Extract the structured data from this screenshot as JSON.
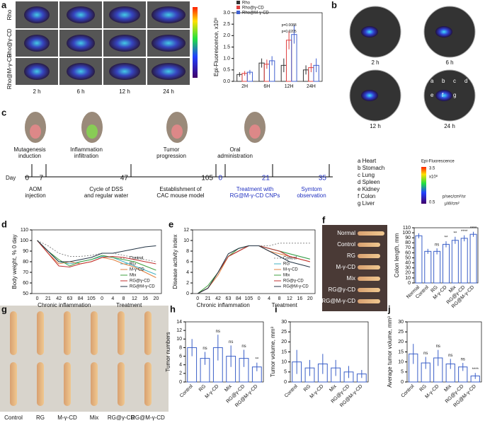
{
  "panels": [
    "a",
    "b",
    "c",
    "d",
    "e",
    "f",
    "g",
    "h",
    "i",
    "j"
  ],
  "a": {
    "rows": [
      "Rho",
      "Rho@γ-CD",
      "Rho@M-γ-CD"
    ],
    "cols": [
      "2 h",
      "6 h",
      "12 h",
      "24 h"
    ]
  },
  "b": {
    "times": [
      "2 h",
      "6 h",
      "12 h",
      "24 h"
    ],
    "organ_marks": [
      "a",
      "b",
      "c",
      "d",
      "e",
      "f",
      "g"
    ],
    "organs": [
      "a Heart",
      "b Stomach",
      "c Lung",
      "d Spleen",
      "e Kidney",
      "f Colon",
      "g Liver"
    ],
    "colorbar": {
      "title": "Epi-Fluorescence",
      "scale": "x10⁸",
      "max": "3.5",
      "min": "0.5",
      "unit_top": "p/sec/cm²/sr",
      "unit_bottom": "µW/cm²"
    }
  },
  "c": {
    "stages": [
      [
        "Mutagenesis",
        "induction"
      ],
      [
        "Inflammation",
        "infiltration"
      ],
      [
        "Tumor",
        "progression"
      ],
      [
        "Oral",
        "administration"
      ]
    ],
    "day_label": "Day",
    "days": [
      "0",
      "7",
      "47",
      "105",
      "0",
      "21",
      "35"
    ],
    "notes": [
      [
        "AOM",
        "injection"
      ],
      [
        "Cycle of DSS",
        "and regular water"
      ],
      [
        "Establishment of",
        "CAC mouse model"
      ],
      [
        "Treatment with",
        "RG@M-γ-CD CNPs"
      ],
      [
        "Symtom",
        "observation"
      ]
    ]
  },
  "f_photo": {
    "labels": [
      "Normal",
      "Control",
      "RG",
      "M-γ-CD",
      "Mix",
      "RG@γ-CD",
      "RG@M-γ-CD"
    ]
  },
  "g": {
    "labels": [
      "Control",
      "RG",
      "M-γ-CD",
      "Mix",
      "RG@γ-CD",
      "RG@M-γ-CD"
    ]
  },
  "chart_data": [
    {
      "type": "bar",
      "ylabel": "Epi-Fluorescence, x10⁸",
      "categories": [
        "2H",
        "6H",
        "12H",
        "24H"
      ],
      "series": [
        {
          "name": "Rho",
          "color": "#333333",
          "values": [
            0.3,
            0.8,
            0.7,
            0.5
          ],
          "errors": [
            0.1,
            0.2,
            0.3,
            0.2
          ]
        },
        {
          "name": "Rho@γ-CD",
          "color": "#e04040",
          "values": [
            0.35,
            0.75,
            1.8,
            0.6
          ],
          "errors": [
            0.1,
            0.2,
            0.4,
            0.2
          ]
        },
        {
          "name": "Rho@M-γ-CD",
          "color": "#4060d0",
          "values": [
            0.4,
            0.9,
            2.05,
            0.7
          ],
          "errors": [
            0.1,
            0.2,
            0.4,
            0.3
          ]
        }
      ],
      "annotations": [
        "p=0.0205",
        "p=0.0088"
      ],
      "legend": "top-left",
      "ylim": [
        0,
        3
      ],
      "yticks": [
        {
          "value": 0,
          "label": "0.0"
        },
        0.5,
        {
          "value": 1,
          "label": "1.0"
        },
        1.5,
        {
          "value": 2,
          "label": "2.0"
        },
        2.5,
        {
          "value": 3,
          "label": "3.0"
        }
      ]
    },
    {
      "type": "line",
      "ylabel": "Body weight, % 0 day",
      "xgroups": [
        "Chronic inflammation",
        "Treatment"
      ],
      "categories": [
        "0",
        "21",
        "42",
        "63",
        "84",
        "105",
        "0",
        "4",
        "8",
        "12",
        "16",
        "20"
      ],
      "series": [
        {
          "name": "Control",
          "color": "#888888",
          "style": "dotted",
          "values": [
            100,
            95,
            88,
            85,
            85,
            86,
            88,
            88,
            86,
            84,
            82,
            80
          ]
        },
        {
          "name": "RG",
          "color": "#40b0c0",
          "values": [
            100,
            90,
            80,
            78,
            80,
            82,
            85,
            84,
            80,
            76,
            72,
            68
          ]
        },
        {
          "name": "M-γ-CD",
          "color": "#e08040",
          "values": [
            100,
            88,
            78,
            80,
            78,
            80,
            84,
            82,
            78,
            75,
            70,
            65
          ]
        },
        {
          "name": "Mix",
          "color": "#40a040",
          "values": [
            100,
            90,
            82,
            76,
            80,
            82,
            86,
            84,
            82,
            80,
            76,
            72
          ]
        },
        {
          "name": "RG@γ-CD",
          "color": "#c03030",
          "values": [
            100,
            88,
            76,
            75,
            78,
            80,
            84,
            85,
            84,
            82,
            80,
            78
          ]
        },
        {
          "name": "RG@M-γ-CD",
          "color": "#223344",
          "values": [
            100,
            90,
            80,
            80,
            82,
            84,
            88,
            88,
            90,
            92,
            94,
            95
          ]
        }
      ],
      "ylim": [
        50,
        110
      ],
      "yticks": [
        50,
        60,
        70,
        80,
        90,
        100,
        110
      ],
      "legend": "bottom-right"
    },
    {
      "type": "line",
      "ylabel": "Disease activity index",
      "xgroups": [
        "Chronic inflammation",
        "Treatment"
      ],
      "categories": [
        "0",
        "21",
        "42",
        "63",
        "84",
        "105",
        "0",
        "4",
        "8",
        "12",
        "16",
        "20"
      ],
      "series": [
        {
          "name": "Control",
          "color": "#888888",
          "style": "dotted",
          "values": [
            0,
            1,
            4,
            7,
            8.5,
            9,
            9,
            9,
            9.5,
            9.5,
            9.5,
            9.5
          ]
        },
        {
          "name": "RG",
          "color": "#40b0c0",
          "values": [
            0,
            1,
            4,
            7,
            8,
            9,
            9,
            8.5,
            8,
            7.5,
            7,
            6.5
          ]
        },
        {
          "name": "M-γ-CD",
          "color": "#e08040",
          "values": [
            0,
            1,
            3.5,
            7,
            8,
            9,
            9,
            8,
            7.5,
            7,
            6.5,
            6
          ]
        },
        {
          "name": "Mix",
          "color": "#40a040",
          "values": [
            0,
            1.5,
            4,
            7,
            8.5,
            9,
            9,
            8.5,
            8,
            7.5,
            7,
            6.5
          ]
        },
        {
          "name": "RG@γ-CD",
          "color": "#c03030",
          "values": [
            0,
            1,
            4,
            7,
            8,
            9,
            9,
            8.5,
            8,
            7,
            6.5,
            6
          ]
        },
        {
          "name": "RG@M-γ-CD",
          "color": "#223344",
          "values": [
            0,
            1,
            4,
            7.5,
            8.5,
            9,
            9,
            8,
            7,
            6,
            5.5,
            5
          ]
        }
      ],
      "ylim": [
        0,
        12
      ],
      "yticks": [
        0,
        2,
        4,
        6,
        8,
        10,
        12
      ],
      "legend": "bottom-right"
    },
    {
      "type": "bar",
      "ylabel": "Colon length, mm",
      "categories": [
        "Normal",
        "Control",
        "RG",
        "M-γ-CD",
        "Mix",
        "RG@γ-CD",
        "RG@M-γ-CD"
      ],
      "series": [
        {
          "color": "#3a5fc8",
          "values": [
            94,
            63,
            63,
            77,
            85,
            89,
            97
          ],
          "errors": [
            5,
            5,
            6,
            6,
            7,
            6,
            5
          ]
        }
      ],
      "annotations": [
        null,
        null,
        "ns",
        "**",
        "**",
        "****",
        "****"
      ],
      "ylim": [
        0,
        110
      ],
      "yticks": [
        0,
        10,
        20,
        30,
        40,
        50,
        60,
        70,
        80,
        90,
        100,
        110
      ]
    },
    {
      "type": "bar",
      "ylabel": "Tumor numbers",
      "categories": [
        "Control",
        "RG",
        "M-γ-CD",
        "Mix",
        "RG@γ-CD",
        "RG@M-γ-CD"
      ],
      "series": [
        {
          "color": "#3a5fc8",
          "values": [
            8,
            5.5,
            8,
            6,
            5.5,
            3.5
          ],
          "errors": [
            2,
            1.5,
            3,
            2.5,
            2,
            1
          ]
        }
      ],
      "annotations": [
        null,
        "ns",
        "ns",
        "ns",
        "ns",
        "**"
      ],
      "ylim": [
        0,
        14
      ],
      "yticks": [
        0,
        2,
        4,
        6,
        8,
        10,
        12,
        14
      ]
    },
    {
      "type": "bar",
      "ylabel": "Tumor volume, mm³",
      "categories": [
        "Control",
        "RG",
        "M-γ-CD",
        "Mix",
        "RG@γ-CD",
        "RG@M-γ-CD"
      ],
      "series": [
        {
          "color": "#3a5fc8",
          "values": [
            10,
            7,
            9,
            7,
            5,
            4
          ],
          "errors": [
            6,
            4,
            5,
            4,
            3,
            2
          ]
        }
      ],
      "annotations": [
        null,
        null,
        null,
        null,
        null,
        null
      ],
      "ylim": [
        0,
        30
      ],
      "yticks": [
        0,
        5,
        10,
        15,
        20,
        25,
        30
      ]
    },
    {
      "type": "bar",
      "ylabel": "Average tumor volume, mm³",
      "categories": [
        "Control",
        "RG",
        "M-γ-CD",
        "Mix",
        "RG@γ-CD",
        "RG@M-γ-CD"
      ],
      "series": [
        {
          "color": "#3a5fc8",
          "values": [
            14,
            9.5,
            12,
            9,
            7.5,
            3
          ],
          "errors": [
            5,
            3,
            4,
            2.5,
            2,
            1.5
          ]
        }
      ],
      "annotations": [
        null,
        "ns",
        "ns",
        "ns",
        "ns",
        "****"
      ],
      "ylim": [
        0,
        30
      ],
      "yticks": [
        0,
        5,
        10,
        15,
        20,
        25,
        30
      ]
    }
  ]
}
